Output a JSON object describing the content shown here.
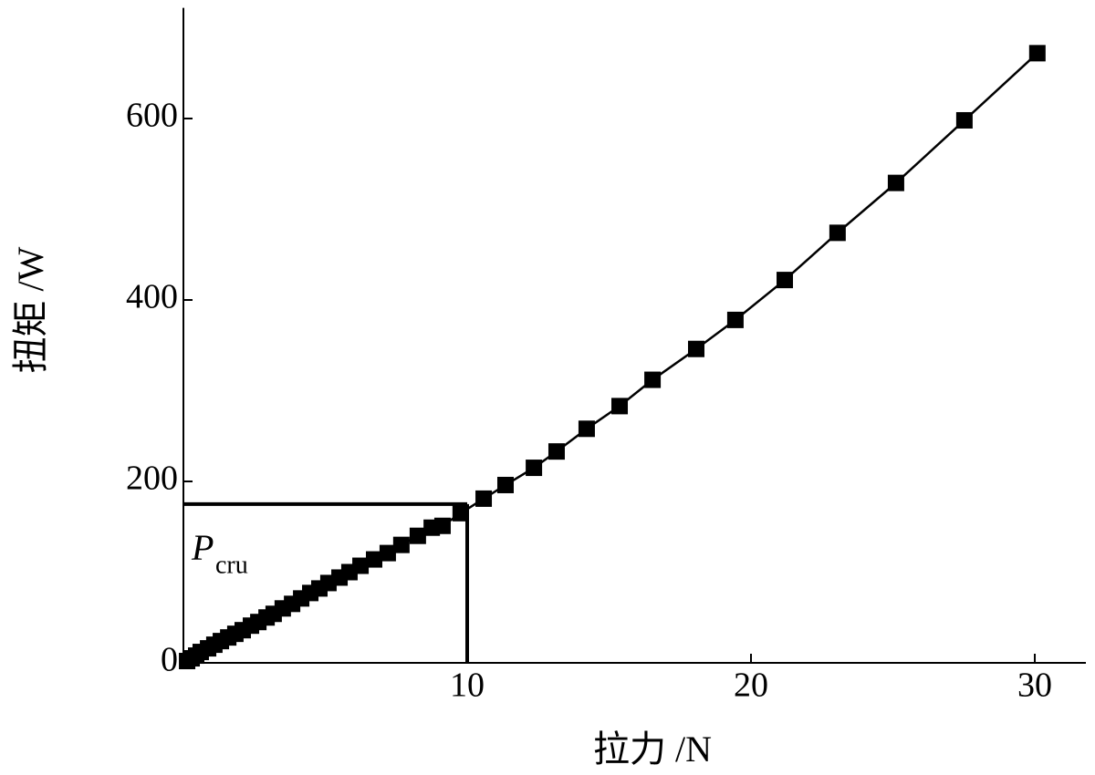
{
  "chart_data": {
    "type": "line",
    "x_label": "拉力 /N",
    "y_label": "扭矩 /W",
    "x": [
      0.13,
      0.29,
      0.45,
      0.61,
      0.87,
      1.09,
      1.32,
      1.58,
      1.83,
      2.09,
      2.38,
      2.64,
      2.93,
      3.18,
      3.5,
      3.83,
      4.15,
      4.47,
      4.79,
      5.11,
      5.5,
      5.85,
      6.24,
      6.72,
      7.2,
      7.68,
      8.26,
      8.75,
      9.13,
      9.77,
      10.58,
      11.35,
      12.35,
      13.15,
      14.21,
      15.37,
      16.53,
      18.07,
      19.45,
      21.19,
      23.05,
      25.11,
      27.52,
      30.09
    ],
    "series": [
      {
        "color": "#000000",
        "marker": "square",
        "values": [
          2,
          5,
          8,
          12,
          16,
          20,
          24,
          28,
          32,
          36,
          41,
          45,
          50,
          54,
          60,
          65,
          71,
          77,
          82,
          88,
          94,
          100,
          107,
          114,
          121,
          130,
          140,
          149,
          151,
          165,
          181,
          196,
          215,
          233,
          258,
          283,
          312,
          346,
          378,
          422,
          474,
          529,
          598,
          672
        ]
      }
    ],
    "xlim": [
      0,
      31.8
    ],
    "ylim": [
      0,
      722
    ],
    "xticks": [
      10,
      20,
      30
    ],
    "yticks": [
      0,
      200,
      400,
      600
    ],
    "grid": false,
    "reference": {
      "x": 10,
      "y": 175
    },
    "annotation": {
      "text": "P",
      "subscript": "cru"
    }
  }
}
